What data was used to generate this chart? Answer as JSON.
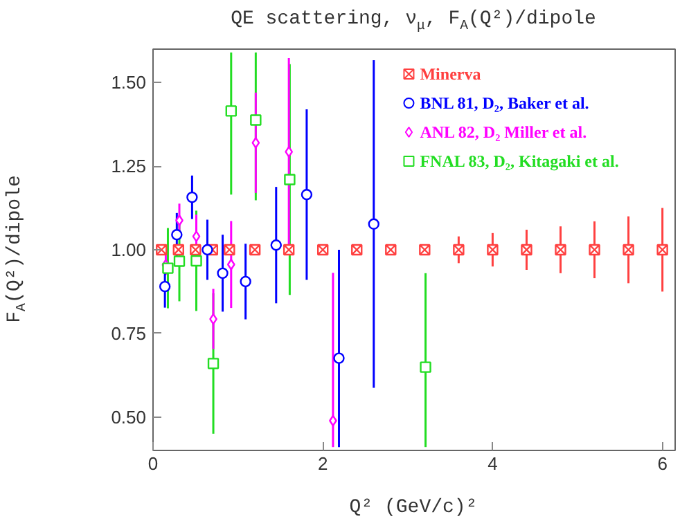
{
  "chart_data": {
    "type": "scatter",
    "title": "QE scattering, ν$_{μ}$, F$_{A}$(Q²)/dipole",
    "xlabel": "Q² (GeV/c)²",
    "ylabel": "F$_{A}$(Q²)/dipole",
    "xlim": [
      0,
      6.15
    ],
    "ylim": [
      0.4,
      1.6
    ],
    "xticks": [
      0,
      2,
      4,
      6
    ],
    "yticks": [
      {
        "value": 0.5,
        "label": "0.50"
      },
      {
        "value": 0.75,
        "label": "0.75"
      },
      {
        "value": 1.0,
        "label": "1.00"
      },
      {
        "value": 1.25,
        "label": "1.25"
      },
      {
        "value": 1.5,
        "label": "1.50"
      }
    ],
    "grid": false,
    "legend": "top right",
    "series": [
      {
        "name": "Minerva",
        "color": "#ff4040",
        "marker": "cross",
        "x": [
          0.1,
          0.3,
          0.5,
          0.7,
          0.9,
          1.2,
          1.6,
          2.0,
          2.4,
          2.8,
          3.2,
          3.6,
          4.0,
          4.4,
          4.8,
          5.2,
          5.6,
          6.0
        ],
        "values": [
          1,
          1,
          1,
          1,
          1,
          1,
          1,
          1,
          1,
          1,
          1,
          1,
          1,
          1,
          1,
          1,
          1,
          1
        ],
        "errors": [
          0.01,
          0.01,
          0.01,
          0.01,
          0.01,
          0.01,
          0.01,
          0.01,
          0.01,
          0.01,
          0.015,
          0.04,
          0.05,
          0.06,
          0.07,
          0.085,
          0.1,
          0.125
        ]
      },
      {
        "name": "BNL 81, D₂, Baker et al.",
        "color": "#0000ff",
        "marker": "circle",
        "x": [
          0.14,
          0.28,
          0.46,
          0.64,
          0.82,
          1.09,
          1.45,
          1.81,
          2.19,
          2.6
        ],
        "values": [
          0.89,
          1.045,
          1.157,
          1.0,
          0.93,
          0.905,
          1.014,
          1.165,
          0.676,
          1.077
        ],
        "errors": [
          0.063,
          [
            0.98,
            1.11
          ],
          0.065,
          0.09,
          0.115,
          0.113,
          0.174,
          0.255,
          [
            0.41,
            1.0
          ],
          0.49
        ]
      },
      {
        "name": "ANL 82, D₂ Miller et al.",
        "color": "#ff00ff",
        "marker": "diamond",
        "x": [
          0.15,
          0.31,
          0.51,
          0.71,
          0.92,
          1.21,
          1.6,
          2.12
        ],
        "values": [
          0.955,
          1.088,
          1.04,
          0.793,
          0.956,
          1.32,
          1.293,
          0.489
        ],
        "errors": [
          0.03,
          0.05,
          0.065,
          0.09,
          0.13,
          0.15,
          0.28,
          [
            0.41,
            0.931
          ]
        ]
      },
      {
        "name": "FNAL 83, D₂, Kitagaki et al.",
        "color": "#22dd22",
        "marker": "square",
        "x": [
          0.175,
          0.31,
          0.51,
          0.71,
          0.92,
          1.21,
          1.61,
          3.21
        ],
        "values": [
          0.945,
          0.966,
          0.967,
          0.66,
          1.415,
          1.388,
          1.21,
          0.649
        ],
        "errors": [
          0.12,
          0.12,
          0.15,
          0.21,
          [
            1.165,
            1.59
          ],
          [
            1.148,
            1.59
          ],
          0.345,
          [
            0.41,
            0.93
          ]
        ]
      }
    ]
  }
}
